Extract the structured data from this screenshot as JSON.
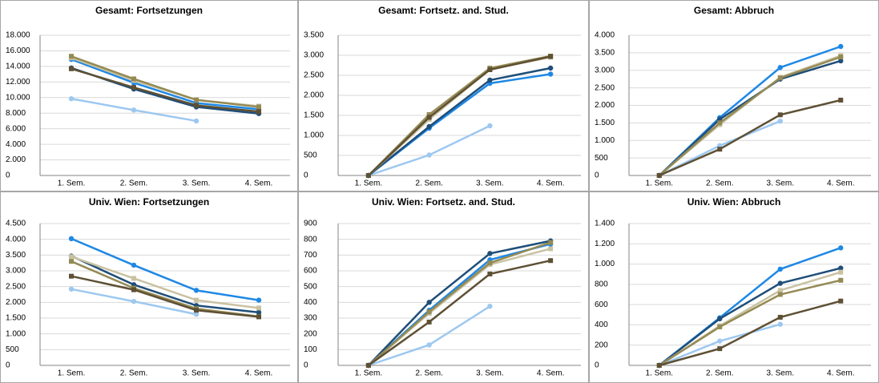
{
  "chart_data": [
    {
      "type": "line",
      "title": "Gesamt: Fortsetzungen",
      "categories": [
        "1. Sem.",
        "2. Sem.",
        "3. Sem.",
        "4. Sem."
      ],
      "ylim": [
        0,
        18000
      ],
      "yticks": [
        0,
        {
          "value": 2000,
          "label": "2.000"
        },
        {
          "value": 4000,
          "label": "4.000"
        },
        {
          "value": 6000,
          "label": "6.000"
        },
        {
          "value": 8000,
          "label": "8.000"
        },
        {
          "value": 10000,
          "label": "10.000"
        },
        {
          "value": 12000,
          "label": "12.000"
        },
        {
          "value": 14000,
          "label": "14.000"
        },
        {
          "value": 16000,
          "label": "16.000"
        },
        {
          "value": 18000,
          "label": "18.000"
        }
      ],
      "grid": true,
      "series": [
        {
          "color": "#9dc8f0",
          "marker": "circle",
          "values": [
            9850,
            8400,
            7000,
            null
          ]
        },
        {
          "color": "#1e88e5",
          "marker": "circle",
          "values": [
            14900,
            11900,
            9300,
            8500
          ]
        },
        {
          "color": "#1f4e79",
          "marker": "circle",
          "values": [
            13800,
            11100,
            8800,
            7950
          ]
        },
        {
          "color": "#c9c2a2",
          "marker": "square",
          "values": [
            15100,
            12200,
            9700,
            8900
          ]
        },
        {
          "color": "#948a54",
          "marker": "square",
          "values": [
            15300,
            12400,
            9700,
            8800
          ]
        },
        {
          "color": "#5e5034",
          "marker": "square",
          "values": [
            13700,
            11300,
            9000,
            8200
          ]
        }
      ]
    },
    {
      "type": "line",
      "title": "Gesamt: Fortsetz. and. Stud.",
      "categories": [
        "1. Sem.",
        "2. Sem.",
        "3. Sem.",
        "4. Sem."
      ],
      "ylim": [
        0,
        3500
      ],
      "yticks": [
        0,
        500,
        {
          "value": 1000,
          "label": "1.000"
        },
        {
          "value": 1500,
          "label": "1.500"
        },
        {
          "value": 2000,
          "label": "2.000"
        },
        {
          "value": 2500,
          "label": "2.500"
        },
        {
          "value": 3000,
          "label": "3.000"
        },
        {
          "value": 3500,
          "label": "3.500"
        }
      ],
      "grid": true,
      "series": [
        {
          "color": "#9dc8f0",
          "marker": "circle",
          "values": [
            0,
            510,
            1240,
            null
          ]
        },
        {
          "color": "#1e88e5",
          "marker": "circle",
          "values": [
            0,
            1180,
            2300,
            2530
          ]
        },
        {
          "color": "#1f4e79",
          "marker": "circle",
          "values": [
            0,
            1220,
            2380,
            2680
          ]
        },
        {
          "color": "#c9c2a2",
          "marker": "square",
          "values": [
            0,
            1400,
            2650,
            2950
          ]
        },
        {
          "color": "#948a54",
          "marker": "square",
          "values": [
            0,
            1520,
            2680,
            2980
          ]
        },
        {
          "color": "#5e5034",
          "marker": "square",
          "values": [
            0,
            1450,
            2640,
            2970
          ]
        }
      ]
    },
    {
      "type": "line",
      "title": "Gesamt: Abbruch",
      "categories": [
        "1. Sem.",
        "2. Sem.",
        "3. Sem.",
        "4. Sem."
      ],
      "ylim": [
        0,
        4000
      ],
      "yticks": [
        0,
        500,
        {
          "value": 1000,
          "label": "1.000"
        },
        {
          "value": 1500,
          "label": "1.500"
        },
        {
          "value": 2000,
          "label": "2.000"
        },
        {
          "value": 2500,
          "label": "2.500"
        },
        {
          "value": 3000,
          "label": "3.000"
        },
        {
          "value": 3500,
          "label": "3.500"
        },
        {
          "value": 4000,
          "label": "4.000"
        }
      ],
      "grid": true,
      "series": [
        {
          "color": "#9dc8f0",
          "marker": "circle",
          "values": [
            0,
            850,
            1550,
            null
          ]
        },
        {
          "color": "#1e88e5",
          "marker": "circle",
          "values": [
            0,
            1650,
            3080,
            3680
          ]
        },
        {
          "color": "#1f4e79",
          "marker": "circle",
          "values": [
            0,
            1600,
            2750,
            3270
          ]
        },
        {
          "color": "#c9c2a2",
          "marker": "square",
          "values": [
            0,
            1450,
            2800,
            3420
          ]
        },
        {
          "color": "#948a54",
          "marker": "square",
          "values": [
            0,
            1500,
            2780,
            3380
          ]
        },
        {
          "color": "#5e5034",
          "marker": "square",
          "values": [
            0,
            750,
            1730,
            2150
          ]
        }
      ]
    },
    {
      "type": "line",
      "title": "Univ. Wien: Fortsetzungen",
      "categories": [
        "1. Sem.",
        "2. Sem.",
        "3. Sem.",
        "4. Sem."
      ],
      "ylim": [
        0,
        4500
      ],
      "yticks": [
        0,
        500,
        {
          "value": 1000,
          "label": "1.000"
        },
        {
          "value": 1500,
          "label": "1.500"
        },
        {
          "value": 2000,
          "label": "2.000"
        },
        {
          "value": 2500,
          "label": "2.500"
        },
        {
          "value": 3000,
          "label": "3.000"
        },
        {
          "value": 3500,
          "label": "3.500"
        },
        {
          "value": 4000,
          "label": "4.000"
        },
        {
          "value": 4500,
          "label": "4.500"
        }
      ],
      "grid": true,
      "series": [
        {
          "color": "#9dc8f0",
          "marker": "circle",
          "values": [
            2420,
            2030,
            1620,
            null
          ]
        },
        {
          "color": "#1e88e5",
          "marker": "circle",
          "values": [
            4020,
            3180,
            2380,
            2070
          ]
        },
        {
          "color": "#1f4e79",
          "marker": "circle",
          "values": [
            3470,
            2560,
            1900,
            1680
          ]
        },
        {
          "color": "#c9c2a2",
          "marker": "square",
          "values": [
            3450,
            2760,
            2070,
            1820
          ]
        },
        {
          "color": "#948a54",
          "marker": "square",
          "values": [
            3300,
            2450,
            1800,
            1550
          ]
        },
        {
          "color": "#5e5034",
          "marker": "square",
          "values": [
            2830,
            2400,
            1750,
            1540
          ]
        }
      ]
    },
    {
      "type": "line",
      "title": "Univ. Wien: Fortsetz. and. Stud.",
      "categories": [
        "1. Sem.",
        "2. Sem.",
        "3. Sem.",
        "4. Sem."
      ],
      "ylim": [
        0,
        900
      ],
      "yticks": [
        0,
        100,
        200,
        300,
        400,
        500,
        600,
        700,
        800,
        900
      ],
      "grid": true,
      "series": [
        {
          "color": "#9dc8f0",
          "marker": "circle",
          "values": [
            0,
            130,
            375,
            null
          ]
        },
        {
          "color": "#1e88e5",
          "marker": "circle",
          "values": [
            0,
            350,
            670,
            770
          ]
        },
        {
          "color": "#1f4e79",
          "marker": "circle",
          "values": [
            0,
            400,
            710,
            790
          ]
        },
        {
          "color": "#c9c2a2",
          "marker": "square",
          "values": [
            0,
            330,
            640,
            740
          ]
        },
        {
          "color": "#948a54",
          "marker": "square",
          "values": [
            0,
            340,
            650,
            780
          ]
        },
        {
          "color": "#5e5034",
          "marker": "square",
          "values": [
            0,
            275,
            580,
            665
          ]
        }
      ]
    },
    {
      "type": "line",
      "title": "Univ. Wien: Abbruch",
      "categories": [
        "1. Sem.",
        "2. Sem.",
        "3. Sem.",
        "4. Sem."
      ],
      "ylim": [
        0,
        1400
      ],
      "yticks": [
        0,
        200,
        400,
        600,
        800,
        {
          "value": 1000,
          "label": "1.000"
        },
        {
          "value": 1200,
          "label": "1.200"
        },
        {
          "value": 1400,
          "label": "1.400"
        }
      ],
      "grid": true,
      "series": [
        {
          "color": "#9dc8f0",
          "marker": "circle",
          "values": [
            0,
            240,
            405,
            null
          ]
        },
        {
          "color": "#1e88e5",
          "marker": "circle",
          "values": [
            0,
            470,
            950,
            1160
          ]
        },
        {
          "color": "#1f4e79",
          "marker": "circle",
          "values": [
            0,
            460,
            810,
            960
          ]
        },
        {
          "color": "#c9c2a2",
          "marker": "square",
          "values": [
            0,
            390,
            740,
            920
          ]
        },
        {
          "color": "#948a54",
          "marker": "square",
          "values": [
            0,
            380,
            700,
            840
          ]
        },
        {
          "color": "#5e5034",
          "marker": "square",
          "values": [
            0,
            165,
            475,
            635
          ]
        }
      ]
    }
  ]
}
